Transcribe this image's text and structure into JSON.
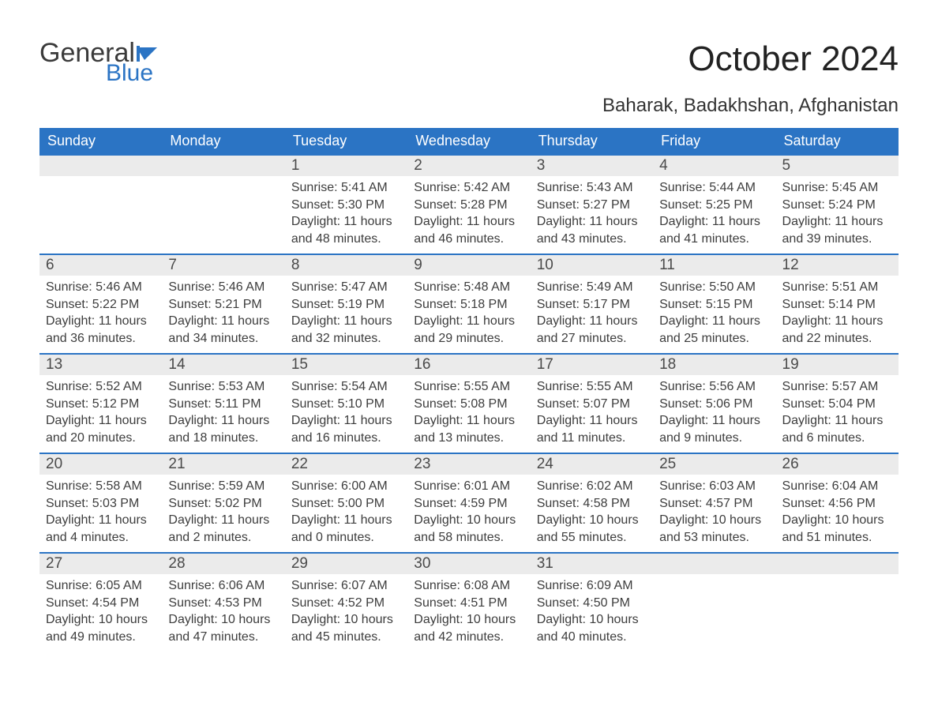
{
  "logo": {
    "word1": "General",
    "word2": "Blue",
    "flag_color": "#2b74c4"
  },
  "title": "October 2024",
  "location": "Baharak, Badakhshan, Afghanistan",
  "colors": {
    "header_bg": "#2b74c4",
    "header_text": "#ffffff",
    "daynum_bg": "#ebebeb",
    "row_border": "#2b74c4",
    "text": "#3d3d3d"
  },
  "day_headers": [
    "Sunday",
    "Monday",
    "Tuesday",
    "Wednesday",
    "Thursday",
    "Friday",
    "Saturday"
  ],
  "weeks": [
    [
      null,
      null,
      {
        "n": "1",
        "sr": "5:41 AM",
        "ss": "5:30 PM",
        "dl": "11 hours and 48 minutes."
      },
      {
        "n": "2",
        "sr": "5:42 AM",
        "ss": "5:28 PM",
        "dl": "11 hours and 46 minutes."
      },
      {
        "n": "3",
        "sr": "5:43 AM",
        "ss": "5:27 PM",
        "dl": "11 hours and 43 minutes."
      },
      {
        "n": "4",
        "sr": "5:44 AM",
        "ss": "5:25 PM",
        "dl": "11 hours and 41 minutes."
      },
      {
        "n": "5",
        "sr": "5:45 AM",
        "ss": "5:24 PM",
        "dl": "11 hours and 39 minutes."
      }
    ],
    [
      {
        "n": "6",
        "sr": "5:46 AM",
        "ss": "5:22 PM",
        "dl": "11 hours and 36 minutes."
      },
      {
        "n": "7",
        "sr": "5:46 AM",
        "ss": "5:21 PM",
        "dl": "11 hours and 34 minutes."
      },
      {
        "n": "8",
        "sr": "5:47 AM",
        "ss": "5:19 PM",
        "dl": "11 hours and 32 minutes."
      },
      {
        "n": "9",
        "sr": "5:48 AM",
        "ss": "5:18 PM",
        "dl": "11 hours and 29 minutes."
      },
      {
        "n": "10",
        "sr": "5:49 AM",
        "ss": "5:17 PM",
        "dl": "11 hours and 27 minutes."
      },
      {
        "n": "11",
        "sr": "5:50 AM",
        "ss": "5:15 PM",
        "dl": "11 hours and 25 minutes."
      },
      {
        "n": "12",
        "sr": "5:51 AM",
        "ss": "5:14 PM",
        "dl": "11 hours and 22 minutes."
      }
    ],
    [
      {
        "n": "13",
        "sr": "5:52 AM",
        "ss": "5:12 PM",
        "dl": "11 hours and 20 minutes."
      },
      {
        "n": "14",
        "sr": "5:53 AM",
        "ss": "5:11 PM",
        "dl": "11 hours and 18 minutes."
      },
      {
        "n": "15",
        "sr": "5:54 AM",
        "ss": "5:10 PM",
        "dl": "11 hours and 16 minutes."
      },
      {
        "n": "16",
        "sr": "5:55 AM",
        "ss": "5:08 PM",
        "dl": "11 hours and 13 minutes."
      },
      {
        "n": "17",
        "sr": "5:55 AM",
        "ss": "5:07 PM",
        "dl": "11 hours and 11 minutes."
      },
      {
        "n": "18",
        "sr": "5:56 AM",
        "ss": "5:06 PM",
        "dl": "11 hours and 9 minutes."
      },
      {
        "n": "19",
        "sr": "5:57 AM",
        "ss": "5:04 PM",
        "dl": "11 hours and 6 minutes."
      }
    ],
    [
      {
        "n": "20",
        "sr": "5:58 AM",
        "ss": "5:03 PM",
        "dl": "11 hours and 4 minutes."
      },
      {
        "n": "21",
        "sr": "5:59 AM",
        "ss": "5:02 PM",
        "dl": "11 hours and 2 minutes."
      },
      {
        "n": "22",
        "sr": "6:00 AM",
        "ss": "5:00 PM",
        "dl": "11 hours and 0 minutes."
      },
      {
        "n": "23",
        "sr": "6:01 AM",
        "ss": "4:59 PM",
        "dl": "10 hours and 58 minutes."
      },
      {
        "n": "24",
        "sr": "6:02 AM",
        "ss": "4:58 PM",
        "dl": "10 hours and 55 minutes."
      },
      {
        "n": "25",
        "sr": "6:03 AM",
        "ss": "4:57 PM",
        "dl": "10 hours and 53 minutes."
      },
      {
        "n": "26",
        "sr": "6:04 AM",
        "ss": "4:56 PM",
        "dl": "10 hours and 51 minutes."
      }
    ],
    [
      {
        "n": "27",
        "sr": "6:05 AM",
        "ss": "4:54 PM",
        "dl": "10 hours and 49 minutes."
      },
      {
        "n": "28",
        "sr": "6:06 AM",
        "ss": "4:53 PM",
        "dl": "10 hours and 47 minutes."
      },
      {
        "n": "29",
        "sr": "6:07 AM",
        "ss": "4:52 PM",
        "dl": "10 hours and 45 minutes."
      },
      {
        "n": "30",
        "sr": "6:08 AM",
        "ss": "4:51 PM",
        "dl": "10 hours and 42 minutes."
      },
      {
        "n": "31",
        "sr": "6:09 AM",
        "ss": "4:50 PM",
        "dl": "10 hours and 40 minutes."
      },
      null,
      null
    ]
  ],
  "labels": {
    "sunrise": "Sunrise: ",
    "sunset": "Sunset: ",
    "daylight": "Daylight: "
  }
}
